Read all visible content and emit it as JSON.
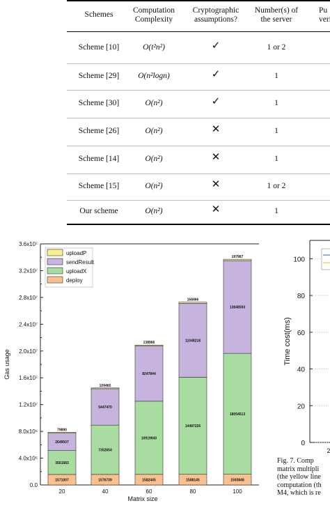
{
  "table": {
    "headers": [
      [
        "Schemes"
      ],
      [
        "Computation",
        "Complexity"
      ],
      [
        "Cryptographic",
        "assumptions?"
      ],
      [
        "Number(s) of",
        "the server"
      ],
      [
        "Pu",
        "veri"
      ]
    ],
    "rows": [
      {
        "scheme": "Scheme [10]",
        "complexity": "O(t²n²)",
        "assumption": "✓",
        "servers": "1 or 2"
      },
      {
        "scheme": "Scheme [29]",
        "complexity": "O(n²logn)",
        "assumption": "✓",
        "servers": "1"
      },
      {
        "scheme": "Scheme [30]",
        "complexity": "O(n²)",
        "assumption": "✓",
        "servers": "1"
      },
      {
        "scheme": "Scheme [26]",
        "complexity": "O(n²)",
        "assumption": "✕",
        "servers": "1"
      },
      {
        "scheme": "Scheme [14]",
        "complexity": "O(n²)",
        "assumption": "✕",
        "servers": "1"
      },
      {
        "scheme": "Scheme [15]",
        "complexity": "O(n²)",
        "assumption": "✕",
        "servers": "1 or 2"
      },
      {
        "scheme": "Our scheme",
        "complexity": "O(n²)",
        "assumption": "✕",
        "servers": "1"
      }
    ]
  },
  "chart_data": [
    {
      "type": "bar",
      "stacked": true,
      "xlabel": "Matrix size",
      "ylabel": "Gas usage",
      "categories": [
        "20",
        "40",
        "60",
        "80",
        "100"
      ],
      "ylim": [
        0,
        36000000
      ],
      "yticks": [
        "0.0",
        "4.0x10⁶",
        "8.0x10⁶",
        "1.2x10⁷",
        "1.6x10⁷",
        "2.0x10⁷",
        "2.4x10⁷",
        "2.8x10⁷",
        "3.2x10⁷",
        "3.6x10⁷"
      ],
      "legend_position": "top-left",
      "series": [
        {
          "name": "deploy",
          "color": "#f9c18f",
          "values": [
            1571007,
            1576739,
            1582445,
            1588145,
            1593848
          ]
        },
        {
          "name": "uploadX",
          "color": "#a8dca0",
          "values": [
            3561683,
            7352654,
            10919940,
            14487226,
            18054513
          ]
        },
        {
          "name": "sendResult",
          "color": "#c7b4de",
          "values": [
            2649507,
            5447470,
            8247844,
            11048218,
            13848593
          ]
        },
        {
          "name": "uploadP",
          "color": "#faf08c",
          "values": [
            79890,
            109465,
            138966,
            168466,
            197967
          ]
        }
      ],
      "legend_order": [
        "uploadP",
        "sendResult",
        "uploadX",
        "deploy"
      ]
    },
    {
      "type": "line",
      "ylabel": "Time cost(ms)",
      "ylim": [
        0,
        110
      ],
      "yticks": [
        "0",
        "20",
        "40",
        "60",
        "80",
        "100"
      ],
      "xtick_partial": "2"
    }
  ],
  "caption": {
    "lines": [
      "Fig. 7.    Comp",
      "matrix multipli",
      "(the yellow line",
      "computation (th",
      "M4, which is re"
    ]
  }
}
